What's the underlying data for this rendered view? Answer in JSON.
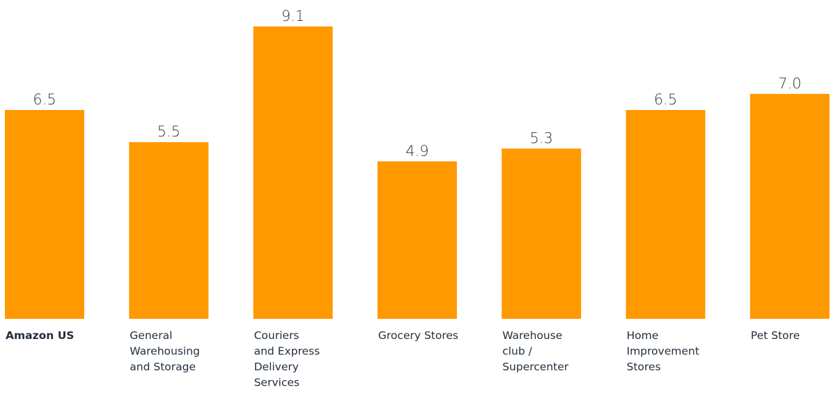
{
  "chart_data": {
    "type": "bar",
    "categories": [
      [
        "Amazon US"
      ],
      [
        "General",
        "Warehousing",
        "and Storage"
      ],
      [
        "Couriers",
        "and Express",
        "Delivery",
        "Services"
      ],
      [
        "Grocery Stores"
      ],
      [
        "Warehouse",
        "club /",
        "Supercenter"
      ],
      [
        "Home",
        "Improvement",
        "Stores"
      ],
      [
        "Pet Store"
      ]
    ],
    "values": [
      6.5,
      5.5,
      9.1,
      4.9,
      5.3,
      6.5,
      7.0
    ],
    "value_labels": [
      "6.5",
      "5.5",
      "9.1",
      "4.9",
      "5.3",
      "6.5",
      "7.0"
    ],
    "highlight_index": 0,
    "title": "",
    "xlabel": "",
    "ylabel": "",
    "ylim": [
      0,
      9.1
    ],
    "grid": false,
    "legend": "none",
    "bar_color": "#ff9900"
  }
}
